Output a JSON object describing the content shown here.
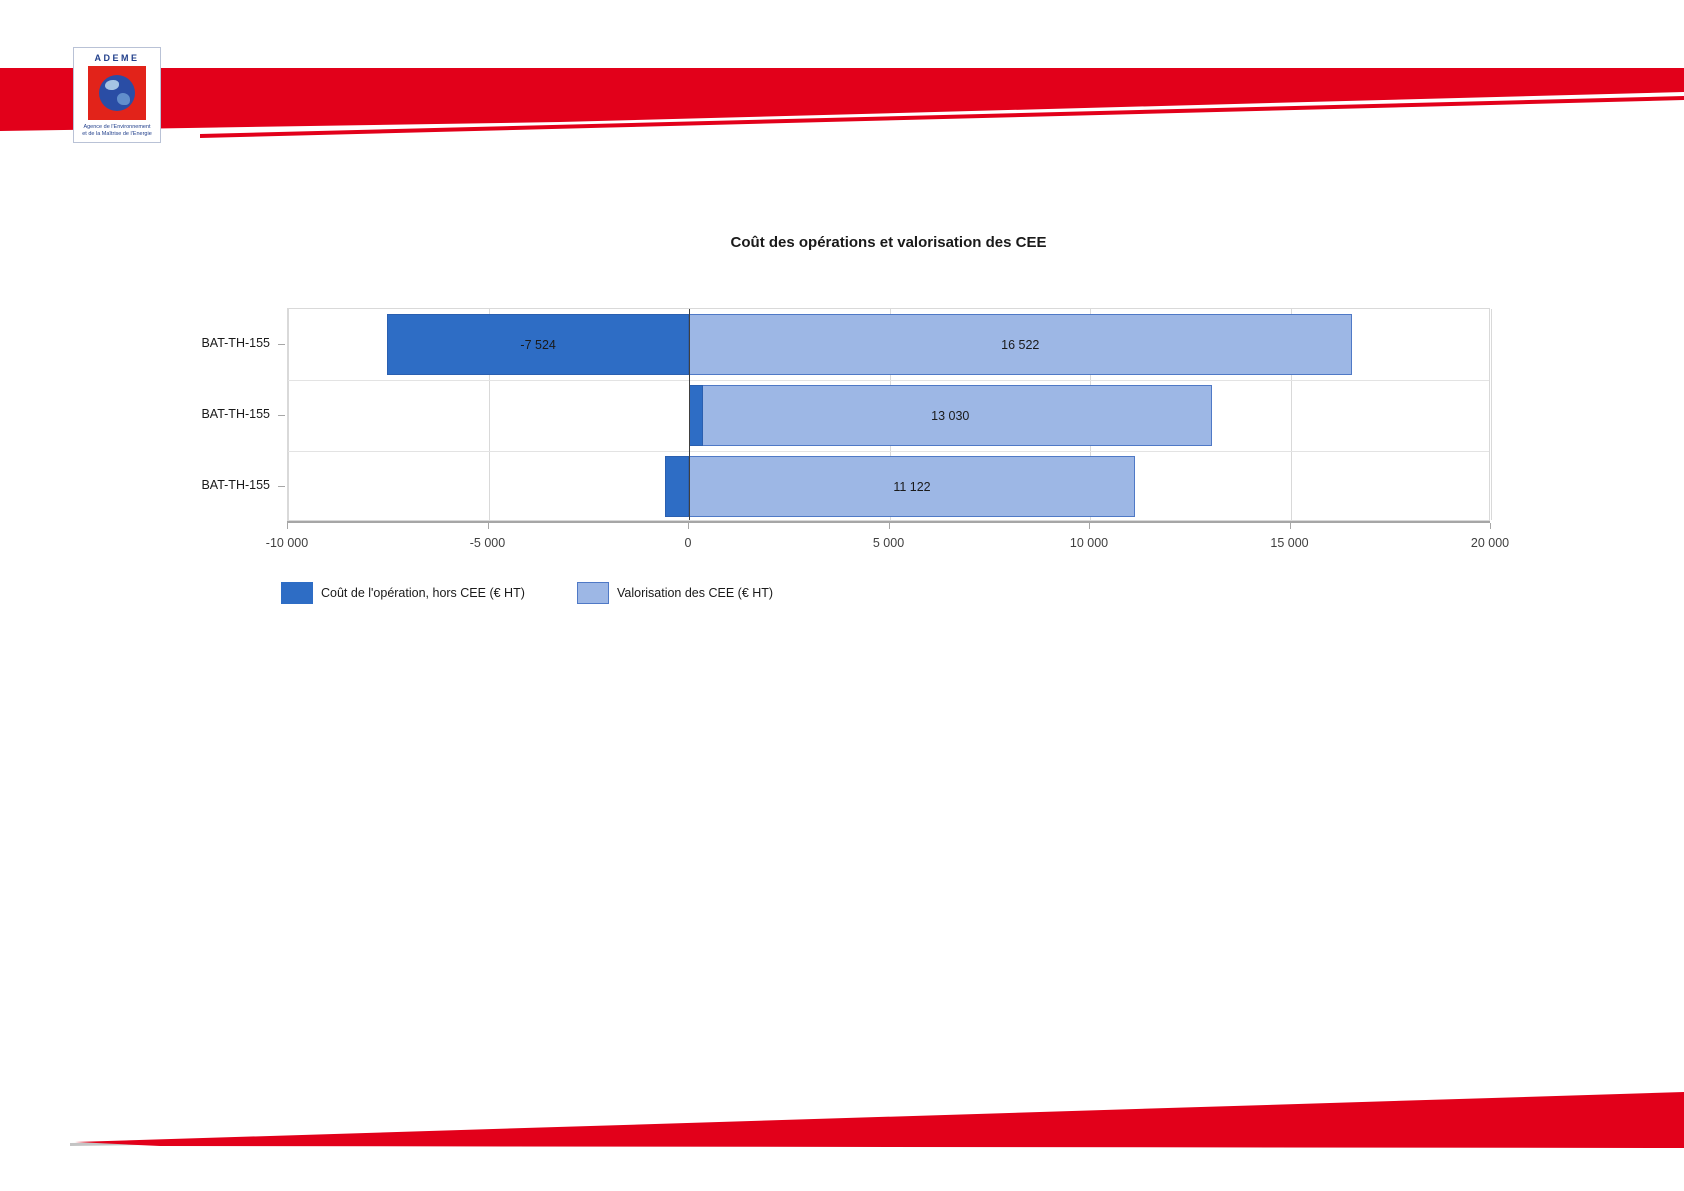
{
  "page": {
    "background": "#ffffff",
    "brand_red": "#E2001A"
  },
  "logo": {
    "wordmark": "ADEME",
    "tagline_line1": "Agence de l'Environnement",
    "tagline_line2": "et de la Maîtrise de l'Energie"
  },
  "chart_data": {
    "type": "bar",
    "orientation": "horizontal",
    "title": "Coût des opérations et valorisation des CEE",
    "categories": [
      "BAT-TH-155",
      "BAT-TH-155",
      "BAT-TH-155"
    ],
    "series": [
      {
        "name": "Coût de l'opération, hors CEE (€ HT)",
        "color": "#2E6DC5",
        "border": "#2A5FB0",
        "values": [
          -7524,
          350,
          -600
        ],
        "labels": [
          "-7 524",
          "",
          ""
        ]
      },
      {
        "name": "Valorisation des CEE (€ HT)",
        "color": "#9DB7E5",
        "border": "#4F79C6",
        "values": [
          16522,
          13030,
          11122
        ],
        "labels": [
          "16 522",
          "13 030",
          "11 122"
        ]
      }
    ],
    "xlim": [
      -10000,
      20000
    ],
    "x_ticks": [
      -10000,
      -5000,
      0,
      5000,
      10000,
      15000,
      20000
    ],
    "x_tick_labels": [
      "-10 000",
      "-5 000",
      "0",
      "5 000",
      "10 000",
      "15 000",
      "20 000"
    ],
    "grid": true,
    "legend_position": "bottom-left"
  }
}
